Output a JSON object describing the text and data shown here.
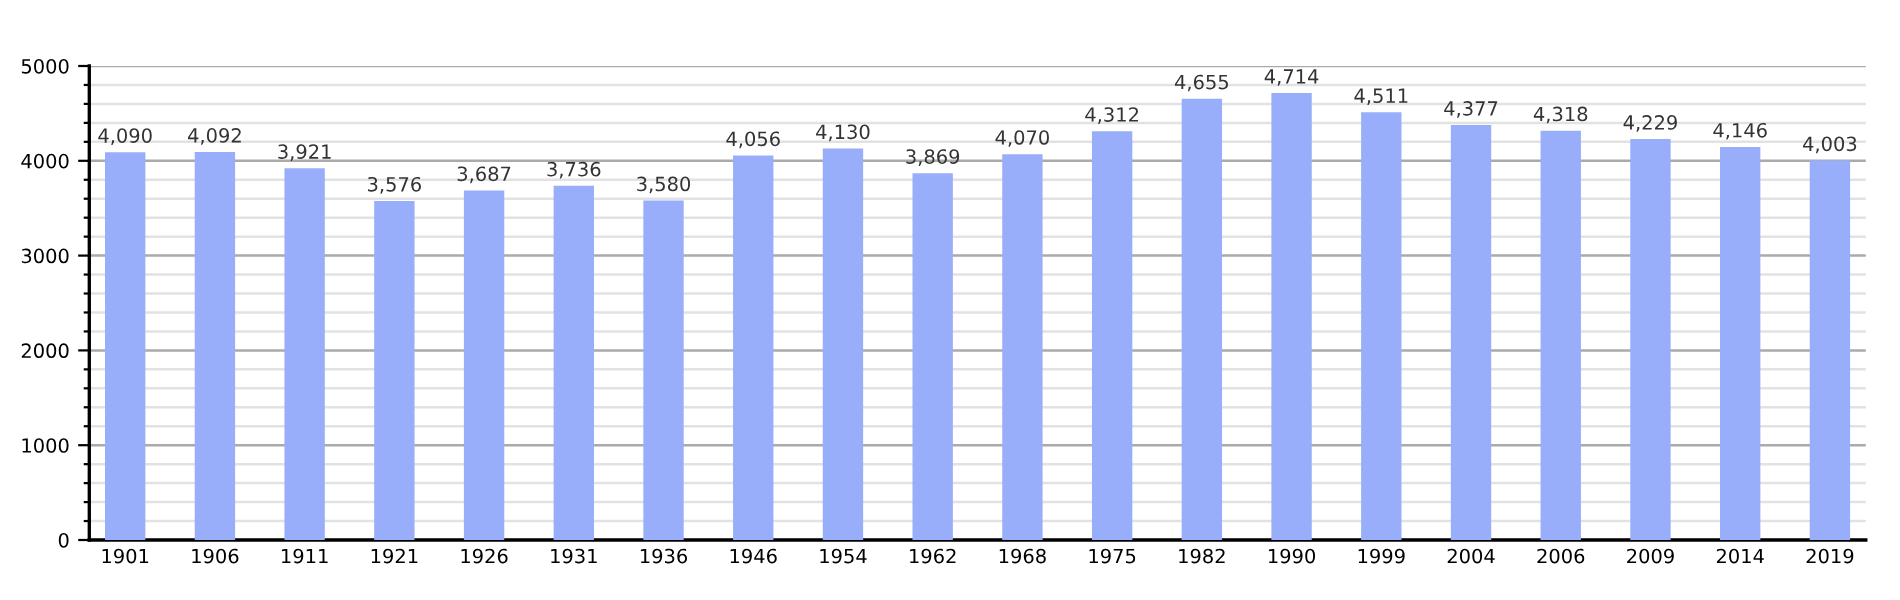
{
  "chart_data": {
    "type": "bar",
    "categories": [
      "1901",
      "1906",
      "1911",
      "1921",
      "1926",
      "1931",
      "1936",
      "1946",
      "1954",
      "1962",
      "1968",
      "1975",
      "1982",
      "1990",
      "1999",
      "2004",
      "2006",
      "2009",
      "2014",
      "2019"
    ],
    "values": [
      4090,
      4092,
      3921,
      3576,
      3687,
      3736,
      3580,
      4056,
      4130,
      3869,
      4070,
      4312,
      4655,
      4714,
      4511,
      4377,
      4318,
      4229,
      4146,
      4003
    ],
    "value_labels": [
      "4,090",
      "4,092",
      "3,921",
      "3,576",
      "3,687",
      "3,736",
      "3,580",
      "4,056",
      "4,130",
      "3,869",
      "4,070",
      "4,312",
      "4,655",
      "4,714",
      "4,511",
      "4,377",
      "4,318",
      "4,229",
      "4,146",
      "4,003"
    ],
    "color": "#99aefa",
    "ylim": [
      0,
      5000
    ],
    "yticks": [
      0,
      {
        "value": 200,
        "label": null
      },
      {
        "value": 400,
        "label": null
      },
      {
        "value": 600,
        "label": null
      },
      {
        "value": 800,
        "label": null
      },
      1000,
      {
        "value": 1200,
        "label": null
      },
      {
        "value": 1400,
        "label": null
      },
      {
        "value": 1600,
        "label": null
      },
      {
        "value": 1800,
        "label": null
      },
      2000,
      {
        "value": 2200,
        "label": null
      },
      {
        "value": 2400,
        "label": null
      },
      {
        "value": 2600,
        "label": null
      },
      {
        "value": 2800,
        "label": null
      },
      3000,
      {
        "value": 3200,
        "label": null
      },
      {
        "value": 3400,
        "label": null
      },
      {
        "value": 3600,
        "label": null
      },
      {
        "value": 3800,
        "label": null
      },
      4000,
      {
        "value": 4200,
        "label": null
      },
      {
        "value": 4400,
        "label": null
      },
      {
        "value": 4600,
        "label": null
      },
      {
        "value": 4800,
        "label": null
      },
      5000
    ],
    "grid": "y"
  }
}
